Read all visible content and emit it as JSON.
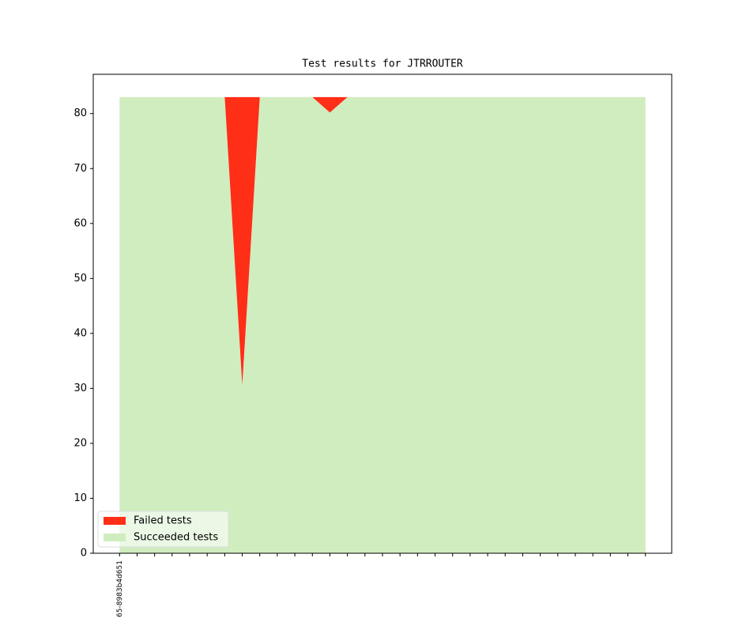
{
  "chart_data": {
    "type": "area",
    "stacked": true,
    "title": "Test results for JTRROUTER",
    "categories": [
      "65-8983b4d651",
      null,
      null,
      null,
      null,
      null,
      null,
      null,
      null,
      null,
      null,
      null,
      null,
      null,
      null,
      null,
      null,
      null,
      null,
      null,
      null,
      null,
      null,
      null,
      null,
      null,
      null,
      null,
      null,
      null,
      null
    ],
    "series": [
      {
        "name": "Failed tests",
        "color": "#ff2e17",
        "values": [
          0,
          0,
          0,
          0,
          0,
          0,
          0,
          52.4,
          0,
          0,
          0,
          0,
          2.8,
          0,
          0,
          0,
          0,
          0,
          0,
          0,
          0,
          0,
          0,
          0,
          0,
          0,
          0,
          0,
          0,
          0,
          0
        ]
      },
      {
        "name": "Succeeded tests",
        "color": "#d0edc0",
        "values": [
          83,
          83,
          83,
          83,
          83,
          83,
          83,
          30.6,
          83,
          83,
          83,
          83,
          80.2,
          83,
          83,
          83,
          83,
          83,
          83,
          83,
          83,
          83,
          83,
          83,
          83,
          83,
          83,
          83,
          83,
          83,
          83
        ]
      }
    ],
    "xlim": [
      -1.5,
      31.5
    ],
    "ylim": [
      0,
      87.15
    ],
    "yticks": [
      0,
      10,
      20,
      30,
      40,
      50,
      60,
      70,
      80
    ],
    "legend": "lower left"
  }
}
